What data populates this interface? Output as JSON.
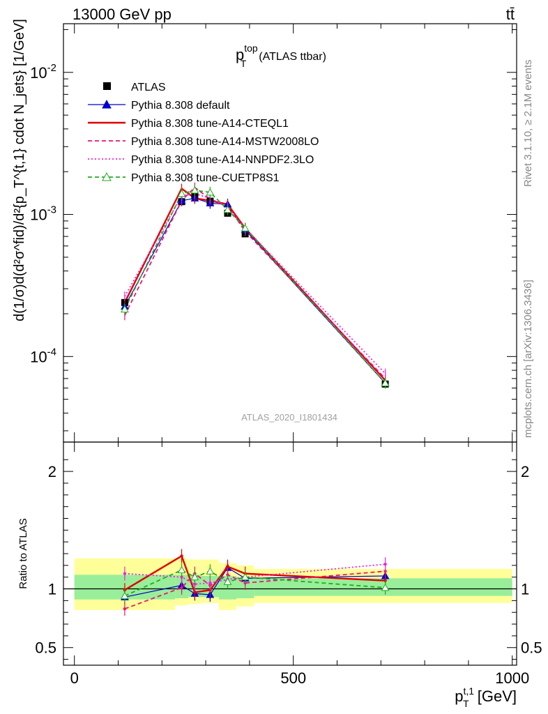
{
  "header": {
    "left": "13000 GeV pp",
    "right": "tt̄"
  },
  "side_labels": {
    "rivet": "Rivet 3.1.10, ≥ 2.1M events",
    "mcplots": "mcplots.cern.ch [arXiv:1306.3436]"
  },
  "watermark": "ATLAS_2020_I1801434",
  "chart_data": [
    {
      "type": "line",
      "panel": "main",
      "title": "p_T^top (ATLAS ttbar)",
      "ylabel": "d(1/σ)d(d²σ^fid)/d²{p_T^{t,1} cdot N_jets} [1/GeV]",
      "yscale": "log",
      "ylim": [
        2.5e-05,
        0.022
      ],
      "xlim": [
        -25,
        1010
      ],
      "ytick_labels": [
        "10^-4",
        "10^-3",
        "10^-2"
      ],
      "x": [
        115,
        245,
        275,
        310,
        350,
        390,
        710
      ],
      "series": [
        {
          "name": "ATLAS",
          "color": "#000000",
          "style": "square-markers",
          "values": [
            0.00024,
            0.00123,
            0.00135,
            0.00124,
            0.00102,
            0.00073,
            6.4e-05
          ]
        },
        {
          "name": "Pythia 8.308 default",
          "color": "#0000cc",
          "style": "solid-thin-triangle",
          "values": [
            0.000225,
            0.00125,
            0.0013,
            0.0012,
            0.00118,
            0.00078,
            6.5e-05
          ]
        },
        {
          "name": "Pythia 8.308 tune-A14-CTEQL1",
          "color": "#e00000",
          "style": "solid-thick",
          "values": [
            0.00024,
            0.00152,
            0.0013,
            0.00125,
            0.00118,
            0.0008,
            6.8e-05
          ]
        },
        {
          "name": "Pythia 8.308 tune-A14-MSTW2008LO",
          "color": "#ee1177",
          "style": "dashed",
          "values": [
            0.000195,
            0.00125,
            0.00155,
            0.00128,
            0.00115,
            0.00076,
            7e-05
          ]
        },
        {
          "name": "Pythia 8.308 tune-A14-NNPDF2.3LO",
          "color": "#ee22dd",
          "style": "dotted",
          "values": [
            0.000265,
            0.00135,
            0.0014,
            0.0013,
            0.00112,
            0.0008,
            7.6e-05
          ]
        },
        {
          "name": "Pythia 8.308 tune-CUETP8S1",
          "color": "#22aa22",
          "style": "dashed-open-triangle",
          "values": [
            0.000215,
            0.0014,
            0.00148,
            0.00143,
            0.00108,
            0.0008,
            6.5e-05
          ]
        }
      ]
    },
    {
      "type": "line",
      "panel": "ratio",
      "ylabel": "Ratio to ATLAS",
      "xlabel": "p_T^{t,1} [GeV]",
      "ylim": [
        0.35,
        2.25
      ],
      "xlim": [
        -25,
        1010
      ],
      "yticks": [
        0.5,
        1,
        2
      ],
      "ytick_labels": [
        "0.5",
        "1",
        "2"
      ],
      "xticks": [
        0,
        500,
        1000
      ],
      "xtick_labels": [
        "0",
        "500",
        "1000"
      ],
      "x": [
        115,
        245,
        275,
        310,
        350,
        390,
        710
      ],
      "bands": {
        "edges": [
          0,
          230,
          260,
          290,
          330,
          370,
          410,
          1000
        ],
        "yellow_lo": [
          0.82,
          0.86,
          0.87,
          0.88,
          0.82,
          0.85,
          0.88
        ],
        "yellow_hi": [
          1.26,
          1.26,
          1.25,
          1.25,
          1.22,
          1.2,
          1.17
        ],
        "green_lo": [
          0.91,
          0.92,
          0.93,
          0.93,
          0.91,
          0.92,
          0.94
        ],
        "green_hi": [
          1.12,
          1.12,
          1.12,
          1.11,
          1.11,
          1.1,
          1.09
        ]
      },
      "series": [
        {
          "name": "Pythia 8.308 default",
          "values": [
            0.93,
            1.03,
            0.96,
            0.95,
            1.18,
            1.09,
            1.11
          ]
        },
        {
          "name": "Pythia 8.308 tune-A14-CTEQL1",
          "values": [
            0.99,
            1.28,
            0.97,
            0.99,
            1.19,
            1.13,
            1.07
          ]
        },
        {
          "name": "Pythia 8.308 tune-A14-MSTW2008LO",
          "values": [
            0.83,
            1.01,
            1.13,
            1.03,
            1.12,
            1.05,
            1.15
          ]
        },
        {
          "name": "Pythia 8.308 tune-A14-NNPDF2.3LO",
          "values": [
            1.13,
            1.1,
            1.04,
            1.05,
            1.08,
            1.1,
            1.21
          ]
        },
        {
          "name": "Pythia 8.308 tune-CUETP8S1",
          "values": [
            0.94,
            1.16,
            1.1,
            1.15,
            1.06,
            1.1,
            1.01
          ]
        }
      ]
    }
  ]
}
